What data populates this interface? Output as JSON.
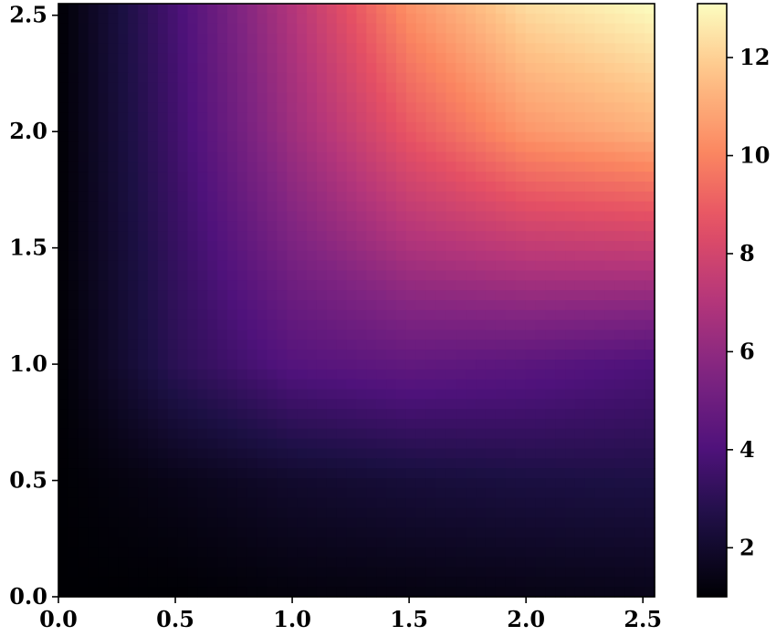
{
  "chart_data": {
    "type": "heatmap",
    "colormap": "magma",
    "xlim": [
      0.0,
      2.55
    ],
    "ylim": [
      0.0,
      2.55
    ],
    "x_ticks": [
      0.0,
      0.5,
      1.0,
      1.5,
      2.0,
      2.5
    ],
    "x_tick_labels": [
      "0.0",
      "0.5",
      "1.0",
      "1.5",
      "2.0",
      "2.5"
    ],
    "y_ticks": [
      0.0,
      0.5,
      1.0,
      1.5,
      2.0,
      2.5
    ],
    "y_tick_labels": [
      "0.0",
      "0.5",
      "1.0",
      "1.5",
      "2.0",
      "2.5"
    ],
    "colorbar": {
      "range": [
        1.0,
        13.1
      ],
      "ticks": [
        2,
        4,
        6,
        8,
        10,
        12
      ],
      "tick_labels": [
        "2",
        "4",
        "6",
        "8",
        "10",
        "12"
      ]
    },
    "grid_x": [
      0.0,
      0.5,
      1.0,
      1.5,
      2.0,
      2.55
    ],
    "grid_y": [
      0.0,
      0.5,
      1.0,
      1.5,
      2.0,
      2.55
    ],
    "values": [
      [
        1.0,
        1.0,
        1.2,
        1.3,
        1.4,
        1.5
      ],
      [
        1.0,
        1.5,
        2.0,
        2.3,
        2.5,
        2.6
      ],
      [
        1.0,
        3.0,
        4.2,
        4.6,
        4.4,
        4.0
      ],
      [
        1.0,
        3.3,
        5.4,
        6.8,
        7.4,
        7.6
      ],
      [
        1.0,
        3.6,
        6.4,
        8.8,
        10.5,
        11.2
      ],
      [
        1.0,
        3.8,
        7.0,
        10.4,
        12.3,
        13.1
      ]
    ],
    "title": "",
    "xlabel": "",
    "ylabel": ""
  }
}
